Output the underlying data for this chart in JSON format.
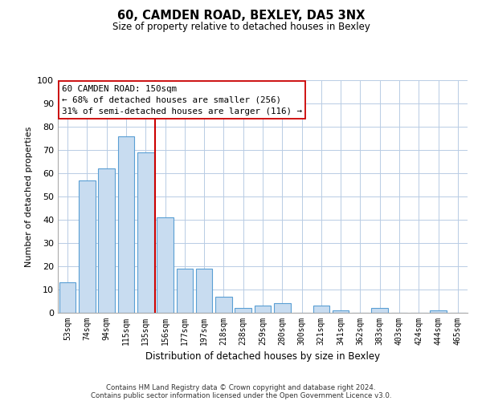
{
  "title": "60, CAMDEN ROAD, BEXLEY, DA5 3NX",
  "subtitle": "Size of property relative to detached houses in Bexley",
  "xlabel": "Distribution of detached houses by size in Bexley",
  "ylabel": "Number of detached properties",
  "categories": [
    "53sqm",
    "74sqm",
    "94sqm",
    "115sqm",
    "135sqm",
    "156sqm",
    "177sqm",
    "197sqm",
    "218sqm",
    "238sqm",
    "259sqm",
    "280sqm",
    "300sqm",
    "321sqm",
    "341sqm",
    "362sqm",
    "383sqm",
    "403sqm",
    "424sqm",
    "444sqm",
    "465sqm"
  ],
  "values": [
    13,
    57,
    62,
    76,
    69,
    41,
    19,
    19,
    7,
    2,
    3,
    4,
    0,
    3,
    1,
    0,
    2,
    0,
    0,
    1,
    0
  ],
  "bar_color": "#c8dcf0",
  "bar_edge_color": "#5a9fd4",
  "vline_color": "#cc0000",
  "ylim": [
    0,
    100
  ],
  "yticks": [
    0,
    10,
    20,
    30,
    40,
    50,
    60,
    70,
    80,
    90,
    100
  ],
  "annotation_box_text": [
    "60 CAMDEN ROAD: 150sqm",
    "← 68% of detached houses are smaller (256)",
    "31% of semi-detached houses are larger (116) →"
  ],
  "footnote1": "Contains HM Land Registry data © Crown copyright and database right 2024.",
  "footnote2": "Contains public sector information licensed under the Open Government Licence v3.0.",
  "background_color": "#ffffff",
  "grid_color": "#b8cce4"
}
